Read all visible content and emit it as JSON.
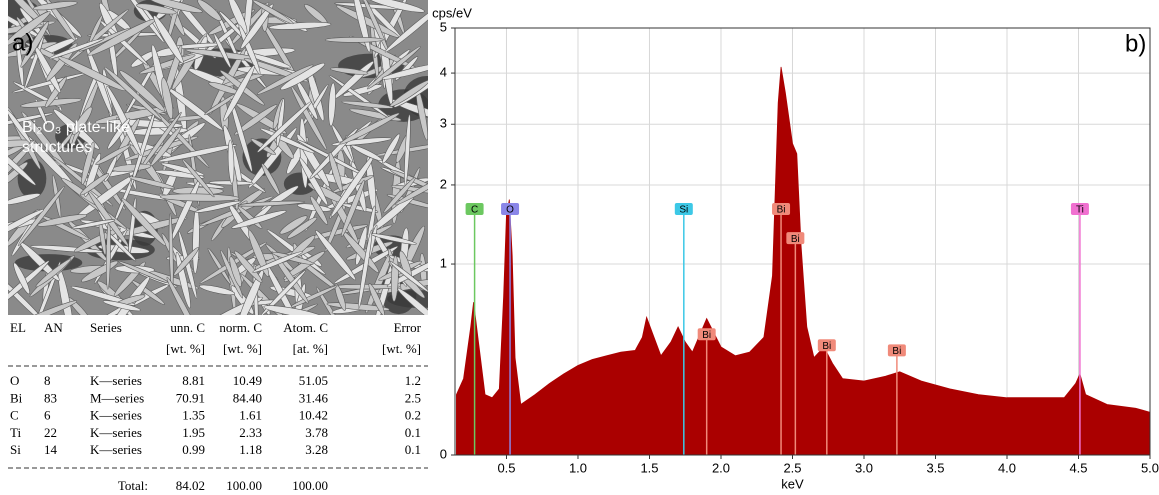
{
  "panel_a": {
    "label": "a)",
    "annotation": [
      "Bi₂O₃ plate-like",
      "structures"
    ]
  },
  "table": {
    "header": [
      [
        "EL"
      ],
      [
        "AN"
      ],
      [
        "Series"
      ],
      [
        "unn. C",
        "[wt. %]"
      ],
      [
        "norm. C",
        "[wt. %]"
      ],
      [
        "Atom. C",
        "[at. %]"
      ],
      [
        "Error",
        "[wt. %]"
      ]
    ],
    "rows": [
      [
        "O",
        "8",
        "K—series",
        "8.81",
        "10.49",
        "51.05",
        "1.2"
      ],
      [
        "Bi",
        "83",
        "M—series",
        "70.91",
        "84.40",
        "31.46",
        "2.5"
      ],
      [
        "C",
        "6",
        "K—series",
        "1.35",
        "1.61",
        "10.42",
        "0.2"
      ],
      [
        "Ti",
        "22",
        "K—series",
        "1.95",
        "2.33",
        "3.78",
        "0.1"
      ],
      [
        "Si",
        "14",
        "K—series",
        "0.99",
        "1.18",
        "3.28",
        "0.1"
      ]
    ],
    "total": {
      "label": "Total:",
      "values": [
        "84.02",
        "100.00",
        "100.00"
      ]
    }
  },
  "chart_data": {
    "type": "area",
    "panel_label": "b)",
    "y_label": "cps/eV",
    "x_label": "keV",
    "yscale": "sqrt",
    "grid": true,
    "color": "#aa0000",
    "xlim": [
      0.14,
      5.0
    ],
    "ylim": [
      0,
      5
    ],
    "xticks": [
      0.5,
      {
        "value": 1.0,
        "label": "1.0"
      },
      1.5,
      {
        "value": 2.0,
        "label": "2.0"
      },
      2.5,
      {
        "value": 3.0,
        "label": "3.0"
      },
      3.5,
      {
        "value": 4.0,
        "label": "4.0"
      },
      4.5,
      {
        "value": 5.0,
        "label": "5.0"
      }
    ],
    "yticks": [
      0,
      1,
      2,
      3,
      4,
      5
    ],
    "x": [
      0.15,
      0.2,
      0.25,
      0.27,
      0.3,
      0.35,
      0.4,
      0.45,
      0.48,
      0.5,
      0.52,
      0.54,
      0.56,
      0.6,
      0.7,
      0.8,
      0.9,
      1.0,
      1.1,
      1.2,
      1.3,
      1.4,
      1.45,
      1.48,
      1.52,
      1.58,
      1.65,
      1.7,
      1.75,
      1.8,
      1.9,
      2.0,
      2.1,
      2.2,
      2.3,
      2.36,
      2.4,
      2.42,
      2.45,
      2.5,
      2.53,
      2.56,
      2.6,
      2.65,
      2.72,
      2.78,
      2.85,
      3.0,
      3.15,
      3.25,
      3.4,
      3.6,
      3.8,
      4.0,
      4.2,
      4.4,
      4.48,
      4.51,
      4.55,
      4.7,
      4.9,
      5.0
    ],
    "values": [
      0.1,
      0.16,
      0.45,
      0.64,
      0.38,
      0.1,
      0.09,
      0.12,
      0.69,
      1.58,
      1.79,
      1.09,
      0.26,
      0.07,
      0.1,
      0.14,
      0.18,
      0.22,
      0.25,
      0.27,
      0.29,
      0.3,
      0.38,
      0.52,
      0.41,
      0.27,
      0.35,
      0.45,
      0.35,
      0.29,
      0.51,
      0.32,
      0.27,
      0.29,
      0.38,
      0.88,
      3.4,
      4.13,
      3.6,
      2.66,
      2.49,
      1.2,
      0.45,
      0.26,
      0.32,
      0.23,
      0.16,
      0.15,
      0.17,
      0.19,
      0.15,
      0.12,
      0.1,
      0.09,
      0.09,
      0.09,
      0.14,
      0.18,
      0.1,
      0.07,
      0.06,
      0.05
    ],
    "markers": [
      {
        "label": "C",
        "x": 0.277,
        "y": 1.66,
        "color": "#6cc860"
      },
      {
        "label": "O",
        "x": 0.525,
        "y": 1.66,
        "color": "#8a86e8"
      },
      {
        "label": "Si",
        "x": 1.74,
        "y": 1.66,
        "color": "#3cc8e6"
      },
      {
        "label": "Bi",
        "x": 2.42,
        "y": 1.66,
        "color": "#f08a7a"
      },
      {
        "label": "Bi",
        "x": 2.52,
        "y": 1.29,
        "color": "#f08a7a"
      },
      {
        "label": "Bi",
        "x": 1.9,
        "y": 0.4,
        "color": "#f08a7a"
      },
      {
        "label": "Bi",
        "x": 2.74,
        "y": 0.33,
        "color": "#f08a7a"
      },
      {
        "label": "Bi",
        "x": 3.23,
        "y": 0.3,
        "color": "#f08a7a"
      },
      {
        "label": "Ti",
        "x": 4.51,
        "y": 1.66,
        "color": "#f070d0"
      }
    ]
  }
}
